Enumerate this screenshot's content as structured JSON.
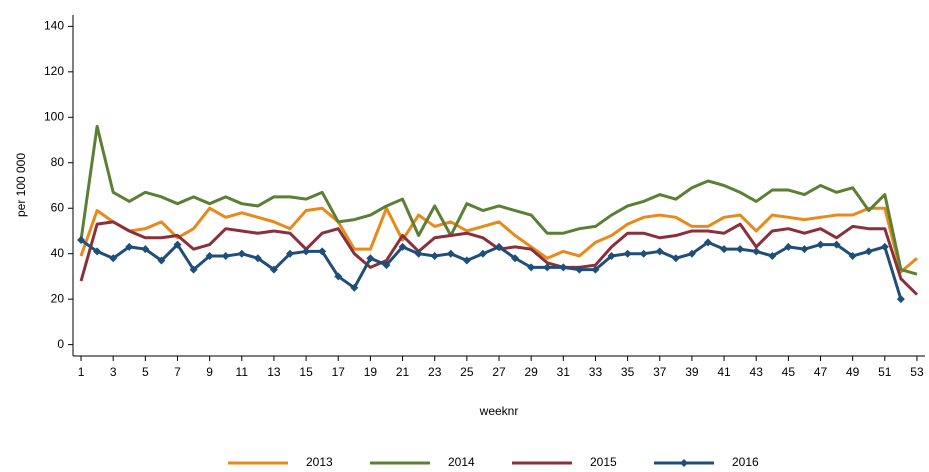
{
  "chart_data": {
    "type": "line",
    "x_label": "weeknr",
    "y_label": "per 100 000",
    "x": [
      1,
      2,
      3,
      4,
      5,
      6,
      7,
      8,
      9,
      10,
      11,
      12,
      13,
      14,
      15,
      16,
      17,
      18,
      19,
      20,
      21,
      22,
      23,
      24,
      25,
      26,
      27,
      28,
      29,
      30,
      31,
      32,
      33,
      34,
      35,
      36,
      37,
      38,
      39,
      40,
      41,
      42,
      43,
      44,
      45,
      46,
      47,
      48,
      49,
      50,
      51,
      52,
      53
    ],
    "xlim": [
      0.5,
      53.5
    ],
    "xticks": [
      1,
      3,
      5,
      7,
      9,
      11,
      13,
      15,
      17,
      19,
      21,
      23,
      25,
      27,
      29,
      31,
      33,
      35,
      37,
      39,
      41,
      43,
      45,
      47,
      49,
      51,
      53
    ],
    "ylim": [
      -5,
      145
    ],
    "yticks": [
      0,
      20,
      40,
      60,
      80,
      100,
      120,
      140
    ],
    "legend": "bottom",
    "series": [
      {
        "name": "2013",
        "color": "#e8891a",
        "values": [
          39,
          59,
          54,
          50,
          51,
          54,
          47,
          51,
          60,
          56,
          58,
          56,
          54,
          51,
          59,
          60,
          54,
          42,
          42,
          60,
          46,
          57,
          52,
          54,
          50,
          52,
          54,
          48,
          43,
          38,
          41,
          39,
          45,
          48,
          53,
          56,
          57,
          56,
          52,
          52,
          56,
          57,
          50,
          57,
          56,
          55,
          56,
          57,
          57,
          60,
          60,
          32,
          38
        ]
      },
      {
        "name": "2014",
        "color": "#5b7f33",
        "values": [
          46,
          96,
          67,
          63,
          67,
          65,
          62,
          65,
          62,
          65,
          62,
          61,
          65,
          65,
          64,
          67,
          54,
          55,
          57,
          61,
          64,
          48,
          61,
          48,
          62,
          59,
          61,
          59,
          57,
          49,
          49,
          51,
          52,
          57,
          61,
          63,
          66,
          64,
          69,
          72,
          70,
          67,
          63,
          68,
          68,
          66,
          70,
          67,
          69,
          59,
          66,
          33,
          31
        ]
      },
      {
        "name": "2015",
        "color": "#8c2f3d",
        "values": [
          28,
          53,
          54,
          50,
          47,
          47,
          48,
          42,
          44,
          51,
          50,
          49,
          50,
          49,
          42,
          49,
          51,
          40,
          34,
          37,
          48,
          41,
          47,
          48,
          49,
          47,
          42,
          43,
          42,
          36,
          34,
          34,
          35,
          43,
          49,
          49,
          47,
          48,
          50,
          50,
          49,
          53,
          43,
          50,
          51,
          49,
          51,
          47,
          52,
          51,
          51,
          29,
          22
        ]
      },
      {
        "name": "2016",
        "color": "#1f4e79",
        "marker": "diamond",
        "values": [
          46,
          41,
          38,
          43,
          42,
          37,
          44,
          33,
          39,
          39,
          40,
          38,
          33,
          40,
          41,
          41,
          30,
          25,
          38,
          35,
          43,
          40,
          39,
          40,
          37,
          40,
          43,
          38,
          34,
          34,
          34,
          33,
          33,
          39,
          40,
          40,
          41,
          38,
          40,
          45,
          42,
          42,
          41,
          39,
          43,
          42,
          44,
          44,
          39,
          41,
          43,
          20,
          null
        ]
      }
    ]
  }
}
